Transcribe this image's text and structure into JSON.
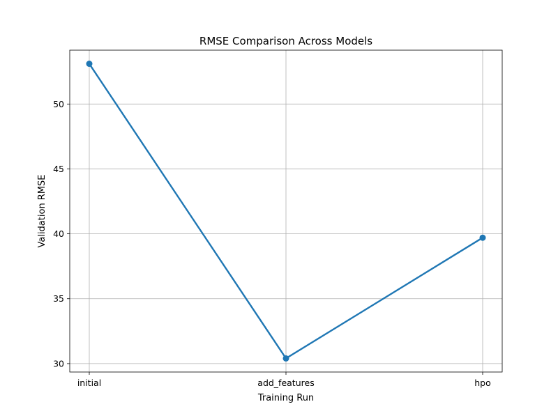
{
  "chart_data": {
    "type": "line",
    "title": "RMSE Comparison Across Models",
    "xlabel": "Training Run",
    "ylabel": "Validation RMSE",
    "categories": [
      "initial",
      "add_features",
      "hpo"
    ],
    "series": [
      {
        "values": [
          53.1,
          30.4,
          39.7
        ]
      }
    ],
    "ylim": [
      29.35,
      54.15
    ],
    "yticks": [
      30,
      35,
      40,
      45,
      50
    ],
    "grid": true,
    "line_color": "#1f77b4",
    "grid_color": "#b0b0b0",
    "marker": "circle"
  }
}
